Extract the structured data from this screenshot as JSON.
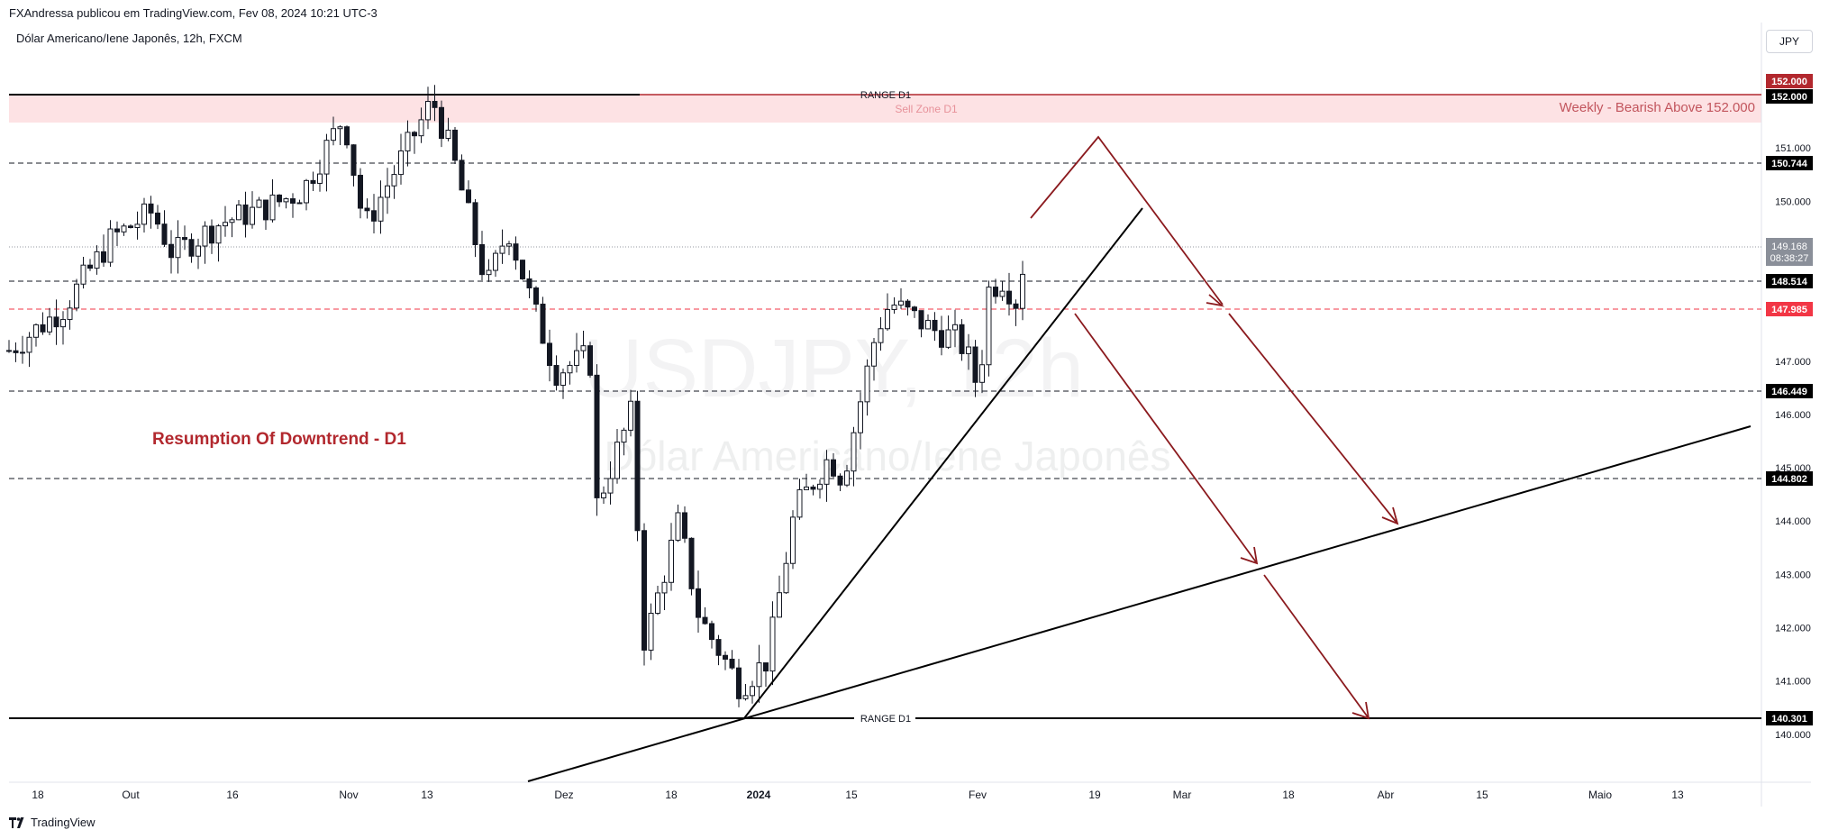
{
  "header": {
    "publisher_line": "FXAndressa publicou em TradingView.com, Fev 08, 2024 10:21 UTC-3",
    "symbol_line": "Dólar Americano/Iene Japonês, 12h, FXCM",
    "currency_button": "JPY"
  },
  "watermark": {
    "ticker": "USDJPY, 12h",
    "name": "Dólar Americano/Iene Japonês"
  },
  "footer": {
    "brand": "TradingView"
  },
  "colors": {
    "up": "#089981",
    "down": "#f23645",
    "candle": "#131722",
    "accent": "#b2282e",
    "sell_zone": "#fde2e4",
    "last_price_bg": "#8a8f99"
  },
  "chart_data": {
    "type": "candlestick",
    "symbol": "USDJPY",
    "timeframe": "12h",
    "ylim": [
      139.0,
      153.0
    ],
    "y_ticks": [
      "140.000",
      "141.000",
      "142.000",
      "143.000",
      "144.000",
      "145.000",
      "146.000",
      "147.000",
      "150.000",
      "151.000"
    ],
    "x_ticks": [
      "18",
      "Out",
      "16",
      "Nov",
      "13",
      "Dez",
      "18",
      "2024",
      "15",
      "Fev",
      "19",
      "Mar",
      "18",
      "Abr",
      "15",
      "Maio",
      "13"
    ],
    "horizontal_levels": [
      {
        "price": 150.744,
        "label": "150.744",
        "style": "dashed"
      },
      {
        "price": 148.514,
        "label": "148.514",
        "style": "dashed"
      },
      {
        "price": 147.985,
        "label": "147.985",
        "style": "dashed-red"
      },
      {
        "price": 146.449,
        "label": "146.449",
        "style": "dashed"
      },
      {
        "price": 144.802,
        "label": "144.802",
        "style": "dashed"
      },
      {
        "price": 140.301,
        "label": "140.301",
        "style": "solid"
      },
      {
        "price": 152.0,
        "label": "152.000",
        "style": "solid"
      }
    ],
    "price_tags": {
      "alert": "152.000",
      "last_price": "149.168",
      "countdown": "08:38:27"
    },
    "annotations": {
      "range_top": "RANGE D1",
      "range_bottom": "RANGE D1",
      "sell_zone": "Sell Zone D1",
      "weekly": "Weekly - Bearish Above 152.000",
      "resumption": "Resumption Of Downtrend - D1"
    },
    "price_path": [
      [
        "2023-09-12",
        147.2
      ],
      [
        "2023-09-20",
        148.0
      ],
      [
        "2023-09-27",
        149.3
      ],
      [
        "2023-10-03",
        149.8
      ],
      [
        "2023-10-06",
        149.0
      ],
      [
        "2023-10-13",
        149.6
      ],
      [
        "2023-10-20",
        149.9
      ],
      [
        "2023-10-25",
        150.2
      ],
      [
        "2023-10-31",
        151.6
      ],
      [
        "2023-11-03",
        149.5
      ],
      [
        "2023-11-08",
        150.7
      ],
      [
        "2023-11-13",
        151.9
      ],
      [
        "2023-11-16",
        150.8
      ],
      [
        "2023-11-21",
        148.4
      ],
      [
        "2023-11-24",
        149.5
      ],
      [
        "2023-11-28",
        147.9
      ],
      [
        "2023-12-01",
        146.8
      ],
      [
        "2023-12-06",
        147.1
      ],
      [
        "2023-12-07",
        144.3
      ],
      [
        "2023-12-12",
        146.0
      ],
      [
        "2023-12-14",
        141.7
      ],
      [
        "2023-12-19",
        144.0
      ],
      [
        "2023-12-22",
        142.2
      ],
      [
        "2023-12-28",
        140.9
      ],
      [
        "2024-01-01",
        141.4
      ],
      [
        "2024-01-05",
        144.2
      ],
      [
        "2024-01-10",
        145.2
      ],
      [
        "2024-01-12",
        144.8
      ],
      [
        "2024-01-17",
        147.6
      ],
      [
        "2024-01-19",
        148.1
      ],
      [
        "2024-01-25",
        147.6
      ],
      [
        "2024-01-29",
        147.4
      ],
      [
        "2024-01-31",
        146.9
      ],
      [
        "2024-02-01",
        146.3
      ],
      [
        "2024-02-02",
        148.3
      ],
      [
        "2024-02-05",
        148.6
      ],
      [
        "2024-02-06",
        147.9
      ],
      [
        "2024-02-08",
        149.2
      ]
    ]
  }
}
